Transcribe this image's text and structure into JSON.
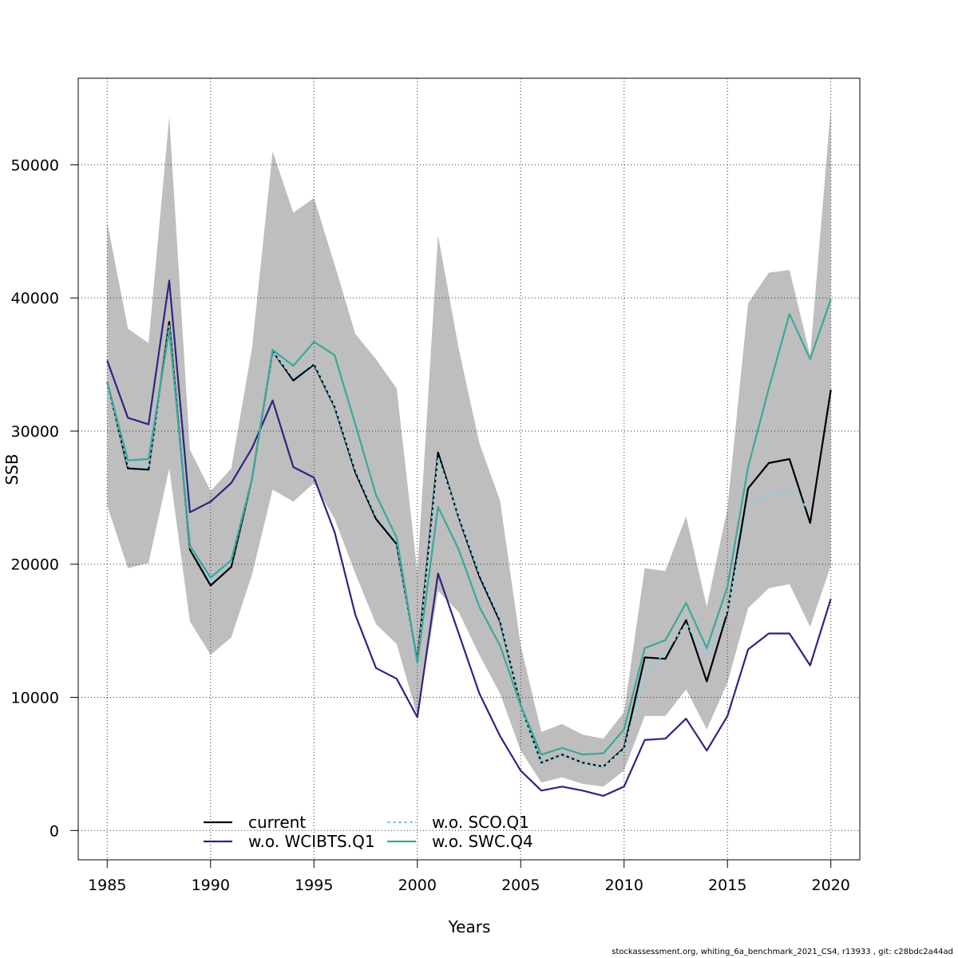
{
  "chart_data": {
    "type": "line",
    "xlabel": "Years",
    "ylabel": "SSB",
    "xlim": [
      1983.6,
      2021.4
    ],
    "ylim": [
      -2200,
      56500
    ],
    "x_ticks": [
      1985,
      1990,
      1995,
      2000,
      2005,
      2010,
      2015,
      2020
    ],
    "y_ticks": [
      0,
      10000,
      20000,
      30000,
      40000,
      50000
    ],
    "grid": true,
    "legend_position": "bottom-center",
    "years": [
      1985,
      1986,
      1987,
      1988,
      1989,
      1990,
      1991,
      1992,
      1993,
      1994,
      1995,
      1996,
      1997,
      1998,
      1999,
      2000,
      2001,
      2002,
      2003,
      2004,
      2005,
      2006,
      2007,
      2008,
      2009,
      2010,
      2011,
      2012,
      2013,
      2014,
      2015,
      2016,
      2017,
      2018,
      2019,
      2020
    ],
    "confidence_band": {
      "color": "#bebebe",
      "lower": [
        24400,
        19700,
        20100,
        27200,
        15700,
        13200,
        14500,
        19200,
        25600,
        24700,
        26100,
        23400,
        19300,
        15500,
        14000,
        8600,
        18000,
        16400,
        13200,
        10300,
        6000,
        3600,
        4000,
        3500,
        3300,
        4500,
        8600,
        8600,
        10600,
        7600,
        11100,
        16700,
        18200,
        18500,
        15300,
        19900
      ],
      "upper": [
        45700,
        37700,
        36600,
        53600,
        28600,
        25500,
        27200,
        36200,
        51000,
        46400,
        47500,
        42500,
        37300,
        35400,
        33200,
        19400,
        44700,
        36200,
        29100,
        24800,
        13900,
        7400,
        8000,
        7200,
        6900,
        8900,
        19700,
        19500,
        23600,
        16800,
        24200,
        39600,
        41900,
        42100,
        35700,
        54300
      ]
    },
    "series": [
      {
        "name": "current",
        "color": "#000000",
        "dash": "",
        "values": [
          33700,
          27200,
          27100,
          38200,
          21100,
          18400,
          19800,
          26400,
          36000,
          33800,
          35000,
          31800,
          26900,
          23400,
          21500,
          12700,
          28400,
          23500,
          19100,
          15700,
          9400,
          5100,
          5700,
          5100,
          4800,
          6200,
          13000,
          12900,
          15800,
          11200,
          16400,
          25700,
          27600,
          27900,
          23100,
          33100
        ]
      },
      {
        "name": "w.o. WCIBTS.Q1",
        "color": "#2e2483",
        "dash": "",
        "values": [
          35300,
          31000,
          30500,
          41300,
          23900,
          24700,
          26100,
          28700,
          32300,
          27300,
          26500,
          22400,
          16200,
          12200,
          11400,
          8500,
          19300,
          14800,
          10300,
          7100,
          4500,
          3000,
          3300,
          3000,
          2600,
          3300,
          6800,
          6900,
          8400,
          6000,
          8600,
          13600,
          14800,
          14800,
          12400,
          17400
        ]
      },
      {
        "name": "w.o. SCO.Q1",
        "color": "#87ceeb",
        "dash": "4,3",
        "values": [
          33600,
          27400,
          27300,
          37900,
          21300,
          18800,
          20200,
          26400,
          36000,
          34000,
          35100,
          31900,
          27100,
          23600,
          21700,
          12500,
          28000,
          23600,
          19300,
          15900,
          9300,
          5100,
          5700,
          5100,
          4800,
          6100,
          11700,
          13400,
          15500,
          13200,
          16500,
          24400,
          25100,
          25700,
          24000,
          null
        ]
      },
      {
        "name": "w.o. SWC.Q4",
        "color": "#3aa89a",
        "dash": "",
        "values": [
          33700,
          27800,
          27900,
          37600,
          21400,
          19000,
          20300,
          26400,
          36100,
          34900,
          36700,
          35700,
          30500,
          25200,
          22000,
          12600,
          24300,
          21100,
          16800,
          13900,
          9400,
          5700,
          6200,
          5700,
          5800,
          7600,
          13700,
          14300,
          17100,
          13700,
          18300,
          27300,
          33200,
          38800,
          35400,
          39900
        ]
      }
    ]
  },
  "footer_note": "stockassessment.org, whiting_6a_benchmark_2021_CS4, r13933 , git: c28bdc2a44ad"
}
